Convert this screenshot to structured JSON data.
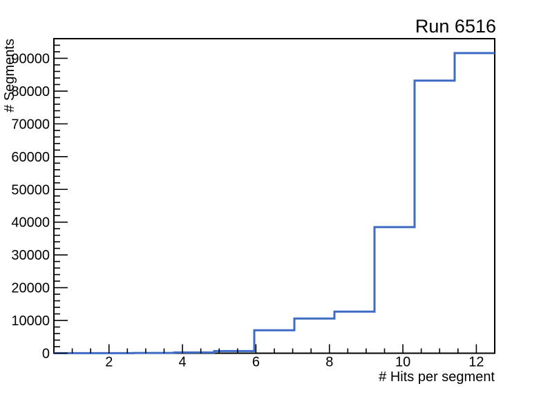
{
  "page": {
    "background": "#ffffff"
  },
  "chart_data": {
    "type": "step-histogram",
    "title": "Run 6516",
    "xlabel": "# Hits per segment",
    "ylabel": "# Segments",
    "xlim": [
      0.5,
      12.5
    ],
    "ylim": [
      0,
      96000
    ],
    "bin_edges": [
      0.5,
      1.5909,
      2.6818,
      3.7727,
      4.8636,
      5.9545,
      7.0455,
      8.1364,
      9.2273,
      10.3182,
      11.4091,
      12.5
    ],
    "values": [
      15,
      35,
      80,
      250,
      650,
      7000,
      10600,
      12700,
      38500,
      83200,
      91600
    ],
    "x_major_ticks": [
      2,
      4,
      6,
      8,
      10,
      12
    ],
    "x_minor_step": 0.5,
    "y_major_ticks": [
      0,
      10000,
      20000,
      30000,
      40000,
      50000,
      60000,
      70000,
      80000,
      90000
    ],
    "y_minor_step": 2000,
    "line_color": "#3d6bc5",
    "axis_color": "#000000",
    "grid": false,
    "legend": null
  }
}
